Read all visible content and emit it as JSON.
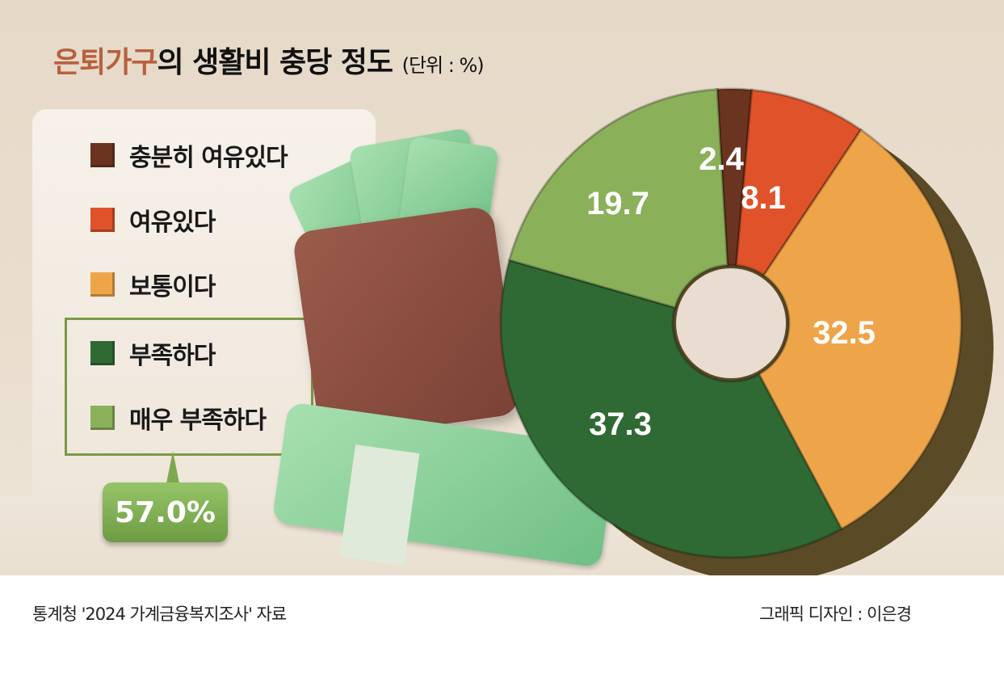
{
  "title": {
    "highlight": "은퇴가구",
    "rest": "의 생활비 충당 정도",
    "unit": "(단위 : %)"
  },
  "footer": {
    "source": "통계청 '2024 가계금융복지조사' 자료",
    "credit": "그래픽 디자인 : 이은경"
  },
  "callout": {
    "value": "57.0%"
  },
  "chart_data": {
    "type": "pie",
    "title": "은퇴가구의 생활비 충당 정도",
    "unit": "%",
    "categories": [
      "충분히 여유있다",
      "여유있다",
      "보통이다",
      "부족하다",
      "매우 부족하다"
    ],
    "values": [
      2.4,
      8.1,
      32.5,
      37.3,
      19.7
    ],
    "value_labels": [
      "2.4",
      "8.1",
      "32.5",
      "37.3",
      "19.7"
    ],
    "colors": [
      "#6b3420",
      "#e0522a",
      "#eea54a",
      "#2f6a35",
      "#8bb05a"
    ],
    "donut": true,
    "legend": "left"
  }
}
